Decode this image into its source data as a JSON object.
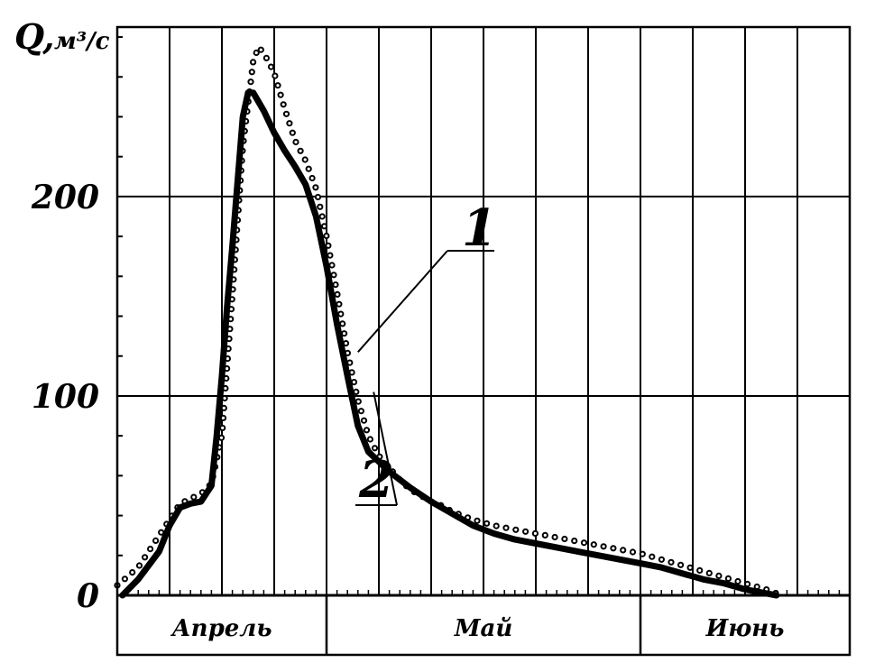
{
  "chart_data": {
    "type": "line",
    "title": "",
    "ylabel": "Q,",
    "yunit": "м³/с",
    "xlabel": "",
    "x_unit": "days since start of April",
    "xlim": [
      0,
      70
    ],
    "ylim": [
      0,
      285
    ],
    "y_ticks": [
      0,
      100,
      200
    ],
    "y_tick_labels": [
      "0",
      "100",
      "200"
    ],
    "months": [
      {
        "label": "Апрель",
        "start": 0,
        "end": 20
      },
      {
        "label": "Май",
        "start": 20,
        "end": 50
      },
      {
        "label": "Июнь",
        "start": 50,
        "end": 70
      }
    ],
    "grid": true,
    "series": [
      {
        "name": "1",
        "style": "dotted",
        "x": [
          0,
          2,
          4,
          6,
          8,
          9,
          10,
          11,
          12,
          13,
          13.5,
          14,
          15,
          16,
          17,
          18,
          19,
          20,
          21,
          22,
          23,
          24,
          25,
          26,
          27,
          28,
          29,
          30,
          31,
          32,
          34,
          36,
          38,
          40,
          42,
          44,
          46,
          48,
          50,
          52,
          54,
          56,
          58,
          60,
          62,
          63
        ],
        "y": [
          5,
          14,
          30,
          46,
          51,
          56,
          80,
          150,
          225,
          268,
          275,
          272,
          262,
          244,
          228,
          218,
          204,
          180,
          152,
          122,
          98,
          80,
          70,
          64,
          58,
          53,
          50,
          47,
          45,
          42,
          38,
          35,
          33,
          31,
          29,
          27,
          25,
          23,
          21,
          18,
          15,
          12,
          9,
          6,
          3,
          1
        ]
      },
      {
        "name": "2",
        "style": "solid",
        "x": [
          0.5,
          2,
          4,
          5,
          6,
          7,
          8,
          9,
          9.5,
          10,
          10.5,
          11,
          12,
          12.5,
          13,
          14,
          15,
          16,
          17,
          18,
          19,
          20,
          21,
          22,
          23,
          24,
          26,
          28,
          30,
          32,
          34,
          36,
          38,
          40,
          42,
          44,
          46,
          48,
          50,
          52,
          54,
          56,
          58,
          60,
          62,
          63
        ],
        "y": [
          0,
          8,
          22,
          35,
          44,
          46,
          47,
          55,
          80,
          110,
          145,
          175,
          240,
          252,
          252,
          243,
          232,
          223,
          215,
          206,
          190,
          165,
          136,
          110,
          85,
          72,
          62,
          54,
          47,
          41,
          35,
          31,
          28,
          26,
          24,
          22,
          20,
          18,
          16,
          14,
          11,
          8,
          6,
          3,
          1,
          0
        ]
      }
    ]
  }
}
